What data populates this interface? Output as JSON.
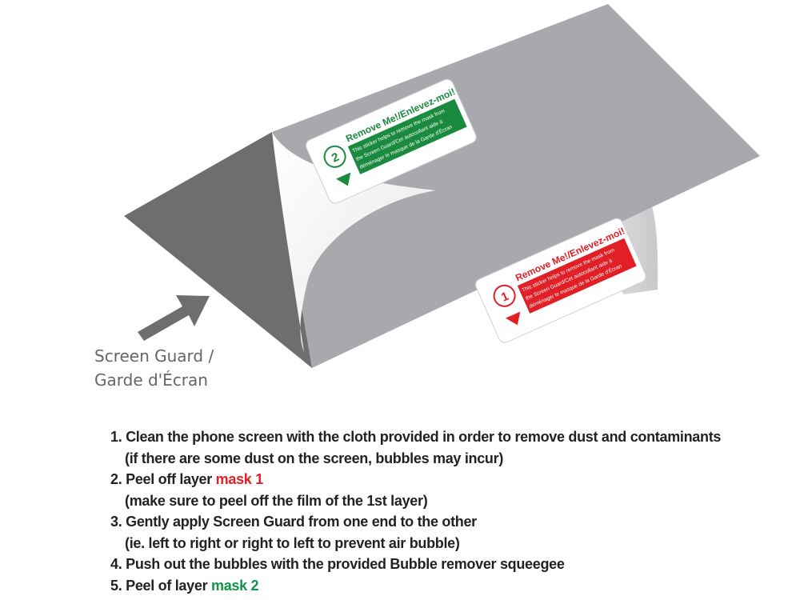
{
  "caption": {
    "line1": "Screen Guard /",
    "line2": "Garde d'Écran"
  },
  "stickers": {
    "mask2": {
      "number": "2",
      "title": "Remove Me!/Enlevez-moi!",
      "text1": "This sticker helps to remove the mask from",
      "text2": "the Screen Guard/Cet autocollant aide à",
      "text3": "déménager le masque de la Garde d'Écran",
      "color": "#1a8a3f"
    },
    "mask1": {
      "number": "1",
      "title": "Remove Me!/Enlevez-moi!",
      "text1": "This sticker helps to remove the mask from",
      "text2": "the Screen Guard/Cet autocollant aide à",
      "text3": "déménager le masque de la Garde d'Écran",
      "color": "#e01f26"
    }
  },
  "steps": {
    "s1": "1. Clean the phone screen with the cloth provided in order to remove dust and contaminants",
    "s1_note": "(if there are some dust on the screen, bubbles may incur)",
    "s2_prefix": "2. Peel off layer ",
    "s2_highlight": "mask 1",
    "s2_note": "(make sure to peel off the film of the 1st layer)",
    "s3": "3. Gently apply Screen Guard from one end to the other",
    "s3_note": "(ie. left to right or right to left to prevent air bubble)",
    "s4": "4. Push out the bubbles with the provided Bubble remover squeegee",
    "s5_prefix": "5. Peel of layer ",
    "s5_highlight": "mask 2"
  },
  "colors": {
    "mask1_highlight": "#e01f26",
    "mask2_highlight": "#13934a",
    "guard_dark": "#6d6e70",
    "guard_light": "#a7a9ac",
    "arrow": "#6d6e70"
  }
}
